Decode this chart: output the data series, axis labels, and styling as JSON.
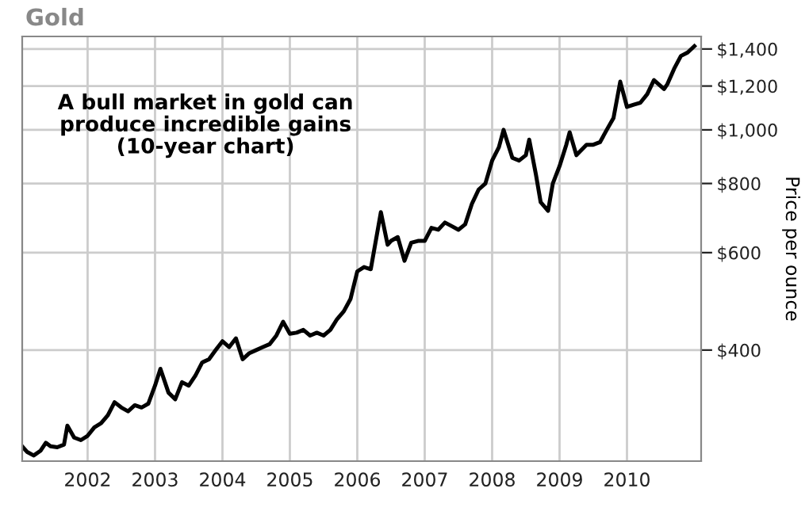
{
  "chart_data": {
    "type": "line",
    "title": "Gold",
    "ylabel": "Price per ounce",
    "annotations": [
      "A bull market in gold can\nproduce incredible gains\n(10-year chart)"
    ],
    "x": [
      2001.03,
      2001.1,
      2001.2,
      2001.3,
      2001.38,
      2001.45,
      2001.55,
      2001.65,
      2001.7,
      2001.8,
      2001.9,
      2002.0,
      2002.1,
      2002.2,
      2002.3,
      2002.4,
      2002.5,
      2002.6,
      2002.7,
      2002.8,
      2002.9,
      2003.0,
      2003.08,
      2003.2,
      2003.3,
      2003.4,
      2003.5,
      2003.6,
      2003.7,
      2003.8,
      2003.9,
      2004.0,
      2004.1,
      2004.2,
      2004.3,
      2004.4,
      2004.5,
      2004.6,
      2004.7,
      2004.8,
      2004.9,
      2005.0,
      2005.1,
      2005.2,
      2005.3,
      2005.4,
      2005.5,
      2005.6,
      2005.7,
      2005.8,
      2005.9,
      2006.0,
      2006.1,
      2006.2,
      2006.35,
      2006.45,
      2006.5,
      2006.6,
      2006.7,
      2006.8,
      2006.9,
      2007.0,
      2007.1,
      2007.2,
      2007.3,
      2007.4,
      2007.5,
      2007.6,
      2007.7,
      2007.8,
      2007.9,
      2008.0,
      2008.1,
      2008.17,
      2008.3,
      2008.4,
      2008.5,
      2008.55,
      2008.65,
      2008.72,
      2008.83,
      2008.9,
      2009.0,
      2009.1,
      2009.15,
      2009.25,
      2009.4,
      2009.5,
      2009.6,
      2009.7,
      2009.8,
      2009.9,
      2010.0,
      2010.1,
      2010.2,
      2010.3,
      2010.4,
      2010.5,
      2010.55,
      2010.6,
      2010.7,
      2010.8,
      2010.9,
      2011.0
    ],
    "series": [
      {
        "color": "#000000",
        "values": [
          268,
          262,
          258,
          263,
          272,
          268,
          267,
          270,
          292,
          278,
          275,
          280,
          290,
          295,
          305,
          322,
          315,
          310,
          318,
          315,
          320,
          345,
          370,
          335,
          326,
          350,
          345,
          360,
          380,
          385,
          400,
          415,
          405,
          420,
          385,
          395,
          400,
          405,
          410,
          425,
          450,
          428,
          430,
          435,
          425,
          430,
          425,
          435,
          455,
          470,
          495,
          555,
          565,
          560,
          710,
          620,
          630,
          640,
          580,
          625,
          630,
          630,
          665,
          660,
          680,
          670,
          660,
          675,
          735,
          780,
          800,
          880,
          930,
          1000,
          890,
          880,
          900,
          960,
          830,
          740,
          714,
          800,
          860,
          940,
          990,
          900,
          940,
          940,
          950,
          1000,
          1050,
          1222,
          1100,
          1110,
          1120,
          1160,
          1230,
          1200,
          1185,
          1210,
          1290,
          1360,
          1380,
          1417
        ]
      }
    ],
    "log": "y",
    "xlim": [
      2001.03,
      2011.1
    ],
    "ylim": [
      252,
      1475
    ],
    "xticks": [
      2002,
      2003,
      2004,
      2005,
      2006,
      2007,
      2008,
      2009,
      2010
    ],
    "yticks": [
      {
        "value": 400,
        "label": "$400"
      },
      {
        "value": 600,
        "label": "$600"
      },
      {
        "value": 800,
        "label": "$800"
      },
      {
        "value": 1000,
        "label": "$1,000"
      },
      {
        "value": 1200,
        "label": "$1,200"
      },
      {
        "value": 1400,
        "label": "$1,400"
      }
    ],
    "grid": true,
    "legend": false,
    "marker": "none",
    "line_style": "solid"
  }
}
